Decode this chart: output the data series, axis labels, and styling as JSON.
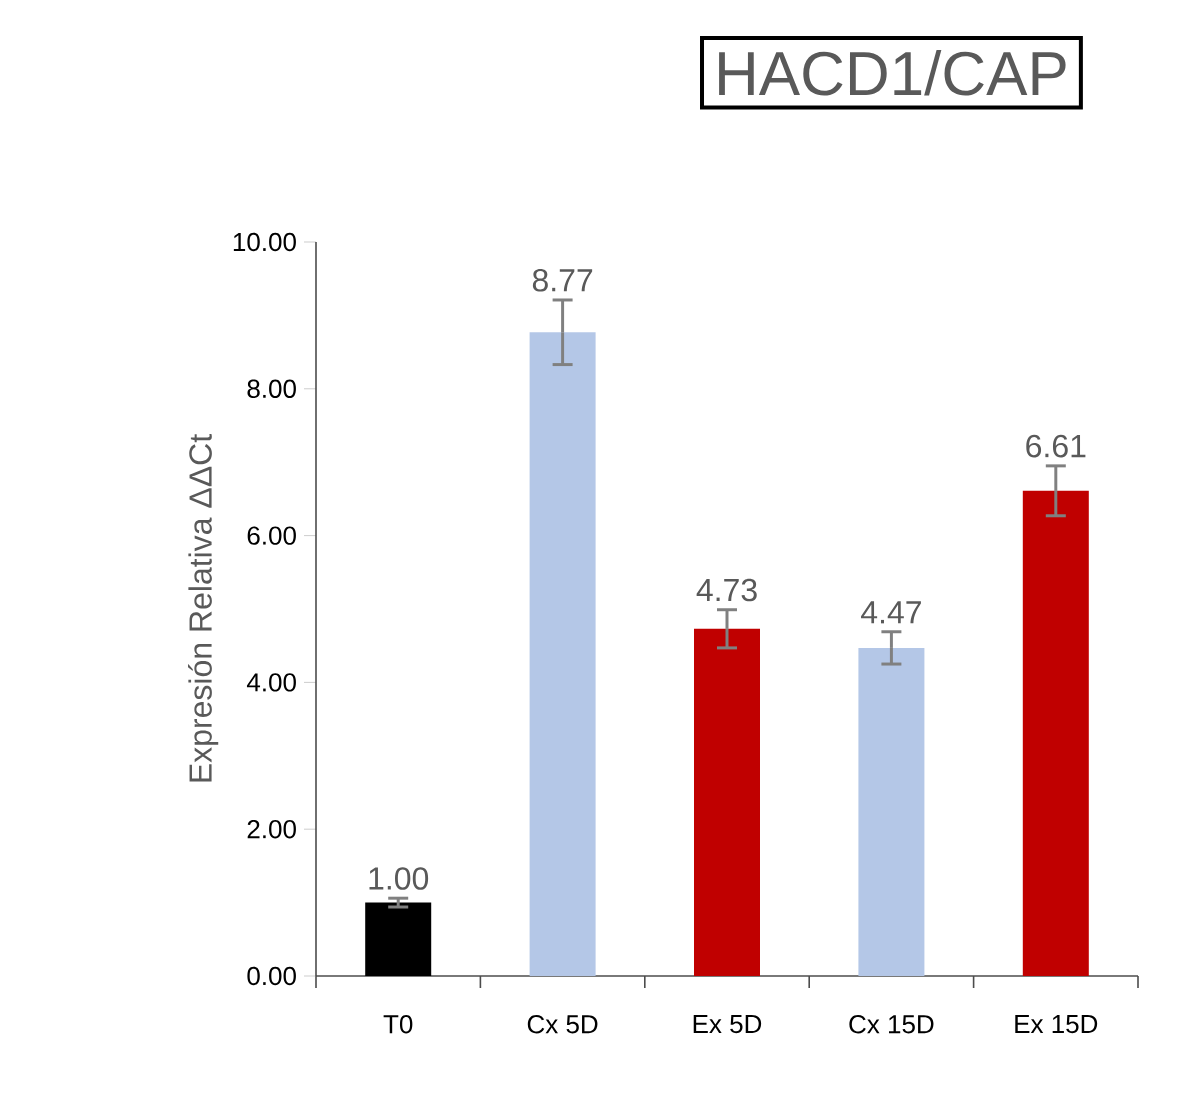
{
  "chart_data": {
    "type": "bar",
    "title": "HACD1/CAP",
    "ylabel": "Expresión Relativa ΔΔCt",
    "categories": [
      "T0",
      "Cx 5D",
      "Ex 5D",
      "Cx 15D",
      "Ex 15D"
    ],
    "values": [
      1.0,
      8.77,
      4.73,
      4.47,
      6.61
    ],
    "value_labels": [
      "1.00",
      "8.77",
      "4.73",
      "4.47",
      "6.61"
    ],
    "errors": [
      0.06,
      0.44,
      0.26,
      0.22,
      0.34
    ],
    "colors": [
      "#000000",
      "#b4c7e7",
      "#c00000",
      "#b4c7e7",
      "#c00000"
    ],
    "ylim": [
      0,
      10
    ],
    "yticks": [
      {
        "value": 0,
        "label": "0.00"
      },
      {
        "value": 2,
        "label": "2.00"
      },
      {
        "value": 4,
        "label": "4.00"
      },
      {
        "value": 6,
        "label": "6.00"
      },
      {
        "value": 8,
        "label": "8.00"
      },
      {
        "value": 10,
        "label": "10.00"
      }
    ],
    "grid": false
  }
}
